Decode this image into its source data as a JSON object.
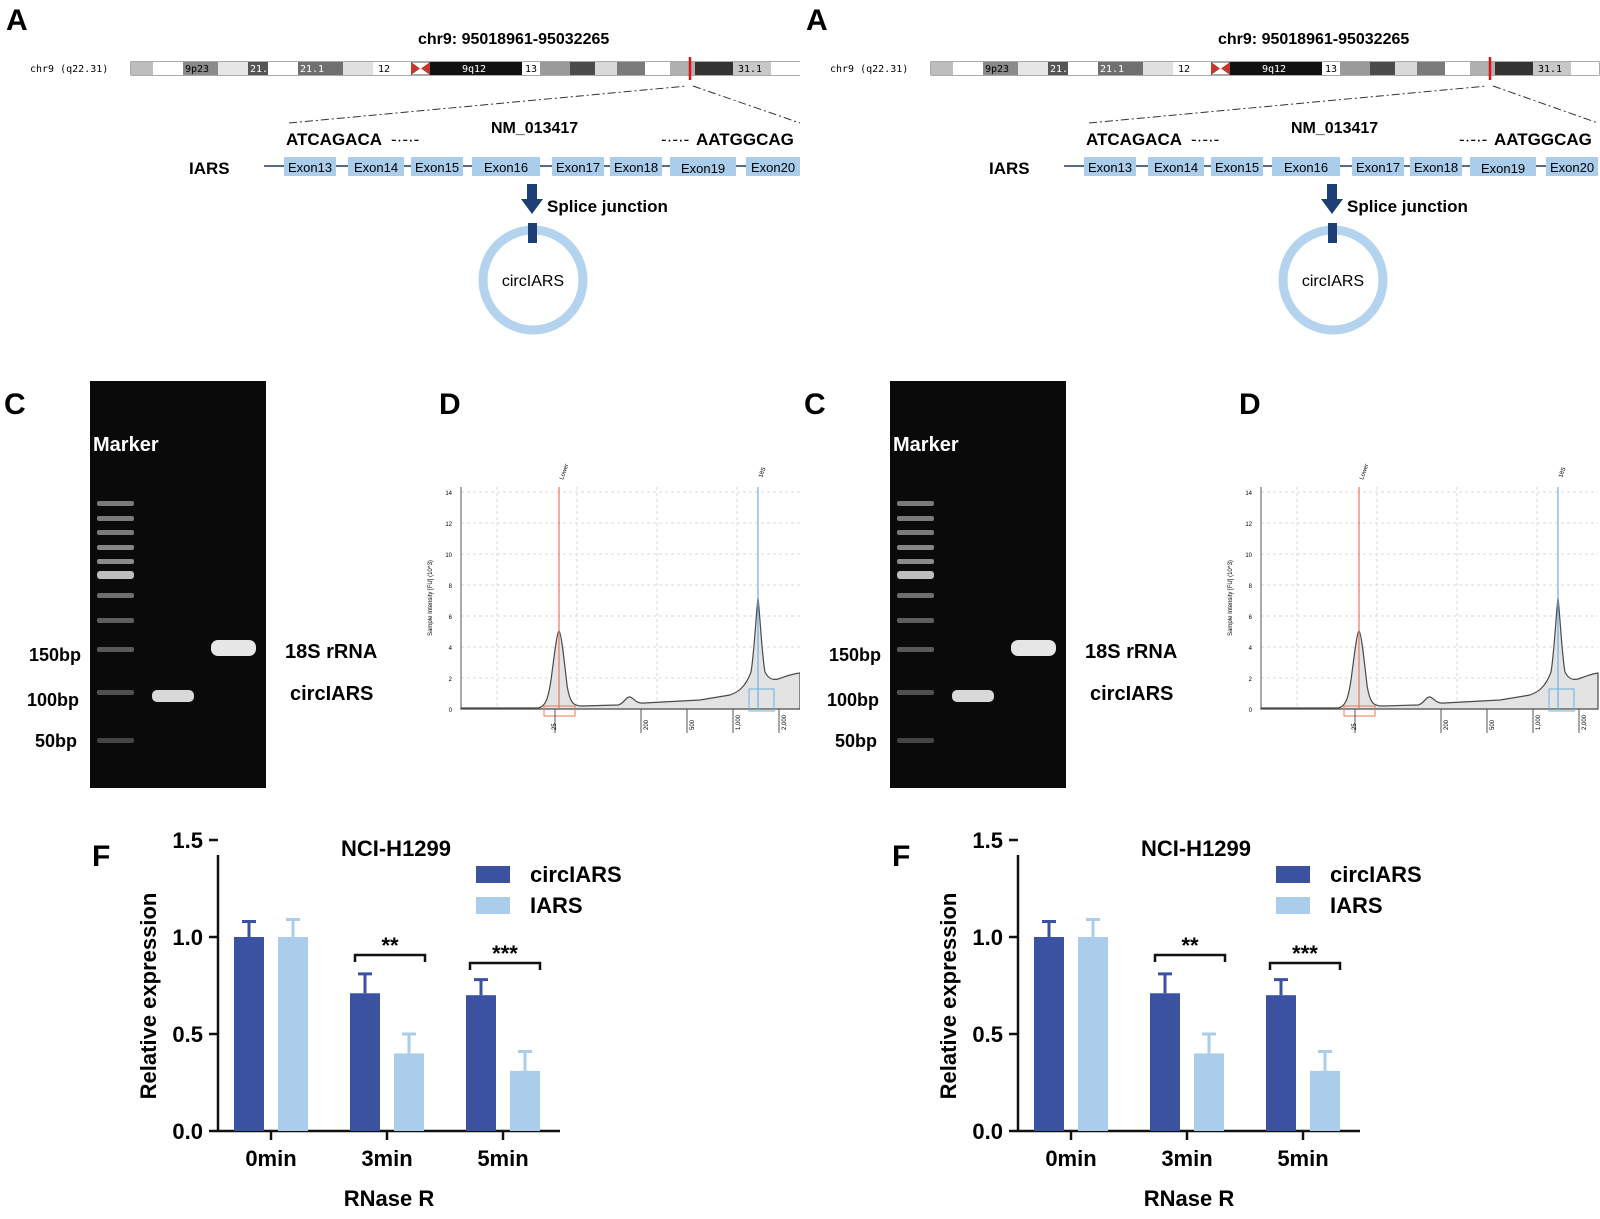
{
  "panels": [
    {
      "A": {
        "letter": "A",
        "locus": "chr9:  95018961-95032265",
        "chrom_label": "chr9 (q22.31)",
        "bands": [
          "9p23",
          "21.3",
          "21.1",
          "12",
          "9q12",
          "13",
          "31.1"
        ],
        "seq_left": "ATCAGACA",
        "seq_right": "AATGGCAG",
        "transcript": "NM_013417",
        "gene": "IARS",
        "exons": [
          "Exon13",
          "Exon14",
          "Exon15",
          "Exon16",
          "Exon17",
          "Exon18",
          "Exon19",
          "Exon20"
        ],
        "junction_label": "Splice junction",
        "circ_label": "circIARS"
      },
      "C": {
        "letter": "C",
        "marker_label": "Marker",
        "size_labels": [
          "150bp",
          "100bp",
          "50bp"
        ],
        "band_labels": [
          "18S rRNA",
          "circIARS"
        ]
      },
      "D": {
        "letter": "D",
        "peak_labels": [
          "Lower",
          "18S"
        ],
        "y_axis_label": "Sample Intensity [FU] (10^3)",
        "y_ticks": [
          "14",
          "12",
          "10",
          "8",
          "6",
          "4",
          "2",
          "0"
        ],
        "x_ticks": [
          "25",
          "200",
          "500",
          "1,000",
          "2,000"
        ]
      },
      "F": {
        "letter": "F",
        "title": "NCI-H1299",
        "ylabel": "Relative expression",
        "xlabel": "RNase R",
        "y_ticks": [
          "0.0",
          "0.5",
          "1.0",
          "1.5"
        ],
        "categories": [
          "0min",
          "3min",
          "5min"
        ],
        "series": [
          {
            "name": "circIARS",
            "color": "#3a52a0",
            "values": [
              1.0,
              0.71,
              0.7
            ],
            "errors": [
              0.08,
              0.1,
              0.08
            ]
          },
          {
            "name": "IARS",
            "color": "#a9cdeb",
            "values": [
              1.0,
              0.4,
              0.31
            ],
            "errors": [
              0.09,
              0.1,
              0.1
            ]
          }
        ],
        "significance": [
          "**",
          "***"
        ]
      }
    },
    {
      "A": {
        "letter": "A",
        "locus": "chr9:  95018961-95032265",
        "chrom_label": "chr9 (q22.31)",
        "bands": [
          "9p23",
          "21.3",
          "21.1",
          "12",
          "9q12",
          "13",
          "31.1"
        ],
        "seq_left": "ATCAGACA",
        "seq_right": "AATGGCAG",
        "transcript": "NM_013417",
        "gene": "IARS",
        "exons": [
          "Exon13",
          "Exon14",
          "Exon15",
          "Exon16",
          "Exon17",
          "Exon18",
          "Exon19",
          "Exon20"
        ],
        "junction_label": "Splice junction",
        "circ_label": "circIARS"
      },
      "C": {
        "letter": "C",
        "marker_label": "Marker",
        "size_labels": [
          "150bp",
          "100bp",
          "50bp"
        ],
        "band_labels": [
          "18S rRNA",
          "circIARS"
        ]
      },
      "D": {
        "letter": "D",
        "peak_labels": [
          "Lower",
          "18S"
        ],
        "y_axis_label": "Sample Intensity [FU] (10^3)",
        "y_ticks": [
          "14",
          "12",
          "10",
          "8",
          "6",
          "4",
          "2",
          "0"
        ],
        "x_ticks": [
          "25",
          "200",
          "500",
          "1,000",
          "2,000"
        ]
      },
      "F": {
        "letter": "F",
        "title": "NCI-H1299",
        "ylabel": "Relative expression",
        "xlabel": "RNase R",
        "y_ticks": [
          "0.0",
          "0.5",
          "1.0",
          "1.5"
        ],
        "categories": [
          "0min",
          "3min",
          "5min"
        ],
        "series": [
          {
            "name": "circIARS",
            "color": "#3a52a0",
            "values": [
              1.0,
              0.71,
              0.7
            ],
            "errors": [
              0.08,
              0.1,
              0.08
            ]
          },
          {
            "name": "IARS",
            "color": "#a9cdeb",
            "values": [
              1.0,
              0.4,
              0.31
            ],
            "errors": [
              0.09,
              0.1,
              0.1
            ]
          }
        ],
        "significance": [
          "**",
          "***"
        ]
      }
    }
  ],
  "chart_data": [
    {
      "type": "bar",
      "title": "NCI-H1299",
      "xlabel": "RNase R",
      "ylabel": "Relative expression",
      "ylim": [
        0,
        1.5
      ],
      "categories": [
        "0min",
        "3min",
        "5min"
      ],
      "series": [
        {
          "name": "circIARS",
          "values": [
            1.0,
            0.71,
            0.7
          ],
          "errors": [
            0.08,
            0.1,
            0.08
          ]
        },
        {
          "name": "IARS",
          "values": [
            1.0,
            0.4,
            0.31
          ],
          "errors": [
            0.09,
            0.1,
            0.1
          ]
        }
      ],
      "annotations": [
        "**",
        "***"
      ],
      "legend": "top-right"
    },
    {
      "type": "bar",
      "title": "NCI-H1299",
      "xlabel": "RNase R",
      "ylabel": "Relative expression",
      "ylim": [
        0,
        1.5
      ],
      "categories": [
        "0min",
        "3min",
        "5min"
      ],
      "series": [
        {
          "name": "circIARS",
          "values": [
            1.0,
            0.71,
            0.7
          ],
          "errors": [
            0.08,
            0.1,
            0.08
          ]
        },
        {
          "name": "IARS",
          "values": [
            1.0,
            0.4,
            0.31
          ],
          "errors": [
            0.09,
            0.1,
            0.1
          ]
        }
      ],
      "annotations": [
        "**",
        "***"
      ],
      "legend": "top-right"
    }
  ]
}
